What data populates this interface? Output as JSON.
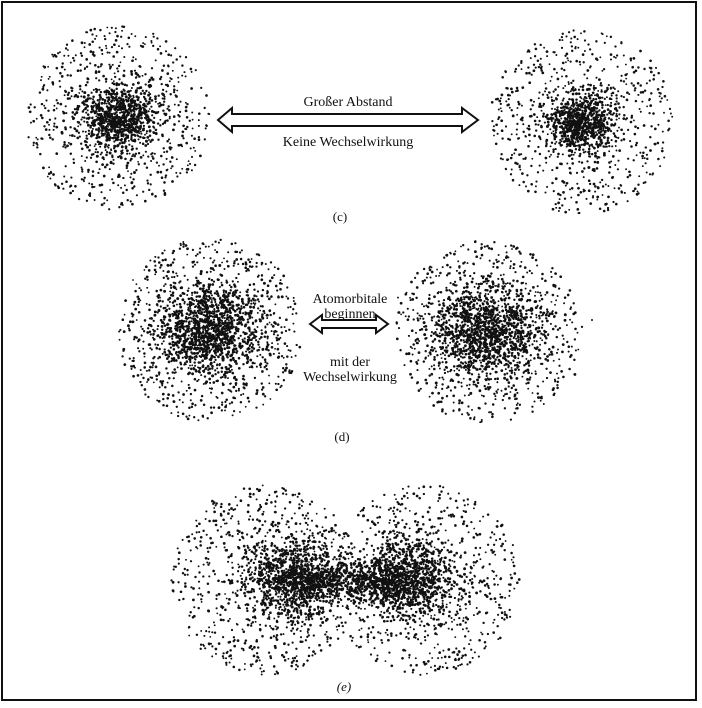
{
  "panels": [
    {
      "id": "c",
      "label": "(c)",
      "arrow_label_top": "Großer Abstand",
      "arrow_label_bottom": "Keine Wechselwirkung"
    },
    {
      "id": "d",
      "label": "(d)",
      "arrow_label_top_line1": "Atomorbitale",
      "arrow_label_top_line2": "beginnen",
      "arrow_label_bottom_line1": "mit der",
      "arrow_label_bottom_line2": "Wechselwirkung"
    },
    {
      "id": "e",
      "label": "(e)"
    }
  ],
  "colors": {
    "ink": "#111111",
    "background": "#ffffff"
  }
}
